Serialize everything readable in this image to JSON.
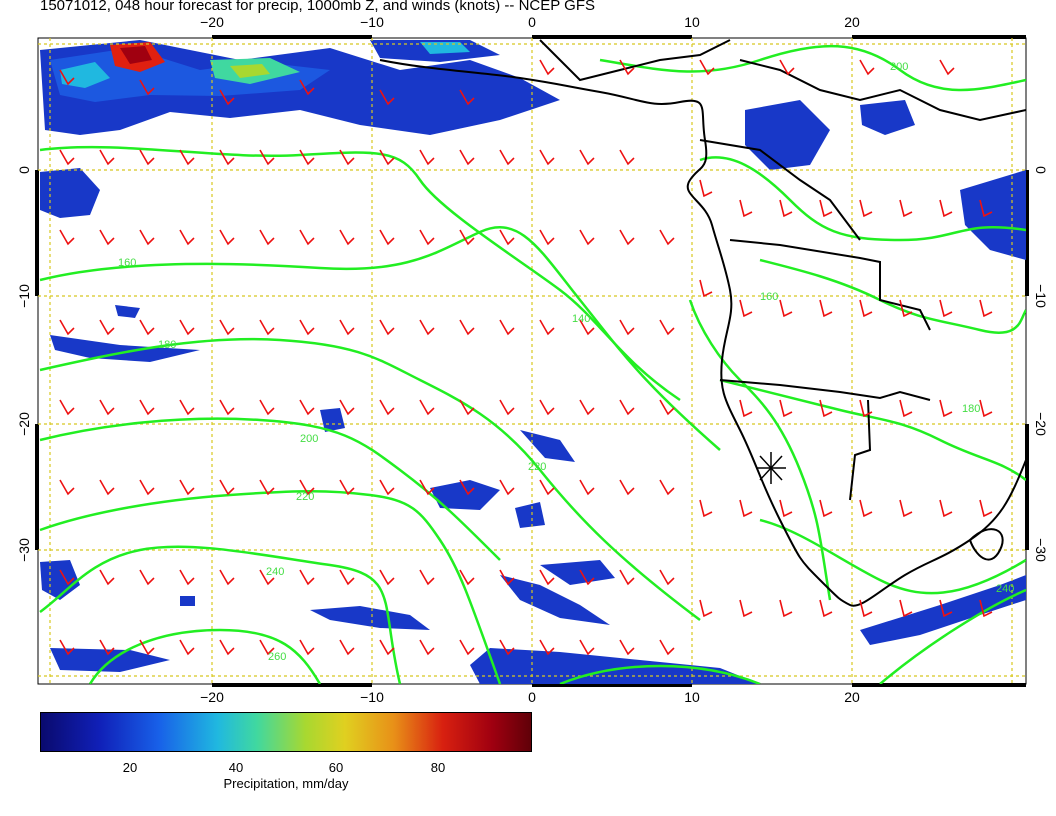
{
  "title": "15071012, 048 hour forecast for precip, 1000mb Z, and winds (knots) -- NCEP GFS",
  "axes": {
    "lon_ticks_bottom": [
      "−20",
      "−10",
      "0",
      "10",
      "20"
    ],
    "lon_ticks_top": [
      "−20",
      "−10",
      "0",
      "10",
      "20"
    ],
    "lat_ticks_left": [
      "0",
      "−10",
      "−20",
      "−30"
    ],
    "lat_ticks_right": [
      "0",
      "−10",
      "−20",
      "−30"
    ],
    "lon_range": [
      -31,
      31
    ],
    "lat_range": [
      -41,
      9
    ]
  },
  "contour_labels": [
    "160",
    "180",
    "200",
    "220",
    "240",
    "260",
    "140",
    "160",
    "180",
    "200",
    "220",
    "240"
  ],
  "colorbar": {
    "label": "Precipitation, mm/day",
    "ticks": [
      "20",
      "40",
      "60",
      "80"
    ],
    "tick_values": [
      20,
      40,
      60,
      80
    ],
    "range": [
      0,
      98
    ]
  },
  "colors": {
    "contour": "#22ee22",
    "wind_barb": "#ee1111",
    "grid": "#d8c820",
    "coast": "#000000"
  }
}
